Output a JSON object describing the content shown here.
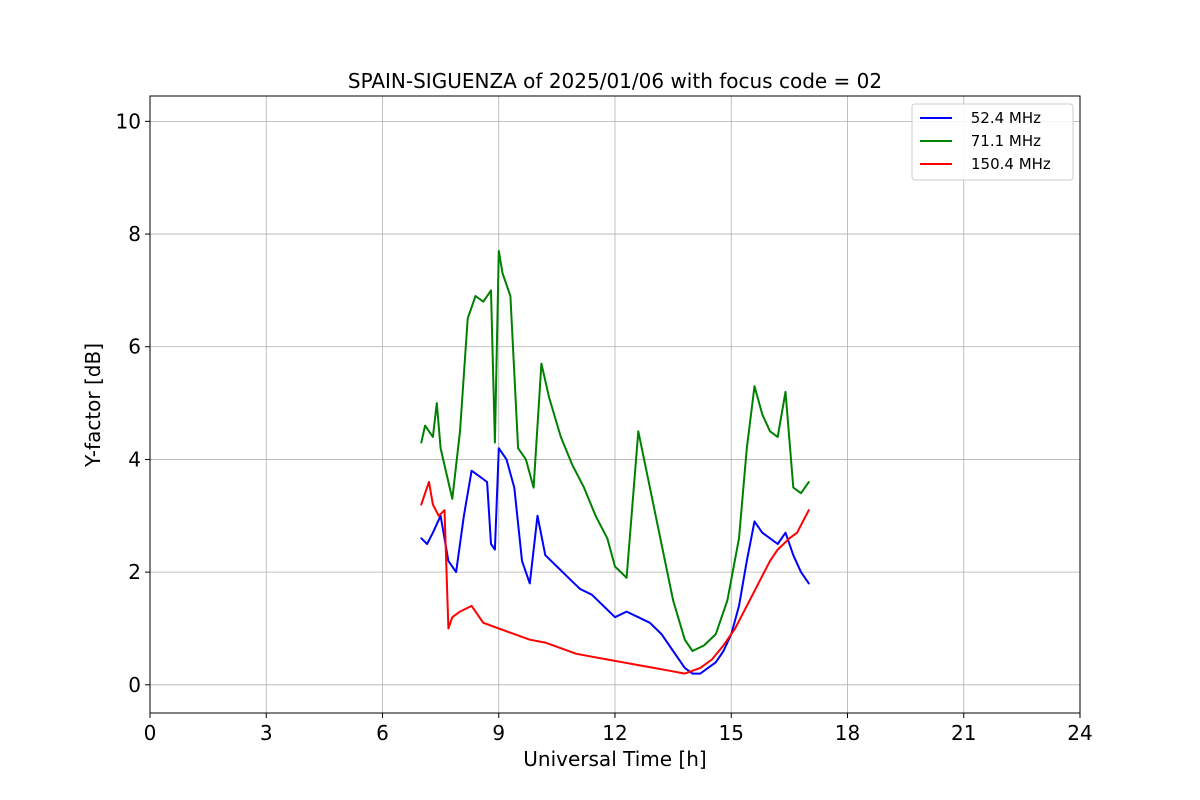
{
  "chart_data": {
    "type": "line",
    "title": "SPAIN-SIGUENZA of 2025/01/06 with focus code = 02",
    "xlabel": "Universal Time [h]",
    "ylabel": "Y-factor [dB]",
    "xlim": [
      0,
      24
    ],
    "ylim": [
      -0.5,
      10.45
    ],
    "xticks": [
      0,
      3,
      6,
      9,
      12,
      15,
      18,
      21,
      24
    ],
    "xtick_labels": [
      "0",
      "3",
      "6",
      "9",
      "12",
      "15",
      "18",
      "21",
      "24"
    ],
    "yticks": [
      0,
      2,
      4,
      6,
      8,
      10
    ],
    "ytick_labels": [
      "0",
      "2",
      "4",
      "6",
      "8",
      "10"
    ],
    "grid": true,
    "legend_position": "top-right",
    "series": [
      {
        "name": " 52.4 MHz",
        "color": "#0000ff",
        "x": [
          7.0,
          7.15,
          7.3,
          7.5,
          7.7,
          7.9,
          8.1,
          8.3,
          8.5,
          8.7,
          8.8,
          8.9,
          9.0,
          9.2,
          9.4,
          9.6,
          9.8,
          10.0,
          10.2,
          10.5,
          10.8,
          11.1,
          11.4,
          11.7,
          12.0,
          12.3,
          12.6,
          12.9,
          13.2,
          13.5,
          13.8,
          14.0,
          14.2,
          14.4,
          14.6,
          14.8,
          15.0,
          15.2,
          15.4,
          15.6,
          15.8,
          16.0,
          16.2,
          16.4,
          16.6,
          16.8,
          17.0
        ],
        "y": [
          2.6,
          2.5,
          2.7,
          3.0,
          2.2,
          2.0,
          3.0,
          3.8,
          3.7,
          3.6,
          2.5,
          2.4,
          4.2,
          4.0,
          3.5,
          2.2,
          1.8,
          3.0,
          2.3,
          2.1,
          1.9,
          1.7,
          1.6,
          1.4,
          1.2,
          1.3,
          1.2,
          1.1,
          0.9,
          0.6,
          0.3,
          0.2,
          0.2,
          0.3,
          0.4,
          0.6,
          0.9,
          1.4,
          2.2,
          2.9,
          2.7,
          2.6,
          2.5,
          2.7,
          2.3,
          2.0,
          1.8
        ]
      },
      {
        "name": " 71.1 MHz",
        "color": "#008000",
        "x": [
          7.0,
          7.1,
          7.2,
          7.3,
          7.4,
          7.5,
          7.6,
          7.8,
          8.0,
          8.2,
          8.4,
          8.6,
          8.8,
          8.9,
          9.0,
          9.1,
          9.3,
          9.5,
          9.7,
          9.9,
          10.1,
          10.3,
          10.6,
          10.9,
          11.2,
          11.5,
          11.8,
          12.0,
          12.3,
          12.6,
          12.9,
          13.2,
          13.5,
          13.8,
          14.0,
          14.3,
          14.6,
          14.9,
          15.2,
          15.4,
          15.6,
          15.8,
          16.0,
          16.2,
          16.4,
          16.6,
          16.8,
          17.0
        ],
        "y": [
          4.3,
          4.6,
          4.5,
          4.4,
          5.0,
          4.2,
          3.9,
          3.3,
          4.5,
          6.5,
          6.9,
          6.8,
          7.0,
          4.3,
          7.7,
          7.3,
          6.9,
          4.2,
          4.0,
          3.5,
          5.7,
          5.1,
          4.4,
          3.9,
          3.5,
          3.0,
          2.6,
          2.1,
          1.9,
          4.5,
          3.5,
          2.5,
          1.5,
          0.8,
          0.6,
          0.7,
          0.9,
          1.5,
          2.6,
          4.2,
          5.3,
          4.8,
          4.5,
          4.4,
          5.2,
          3.5,
          3.4,
          3.6
        ]
      },
      {
        "name": "150.4 MHz",
        "color": "#ff0000",
        "x": [
          7.0,
          7.1,
          7.2,
          7.3,
          7.45,
          7.6,
          7.7,
          7.8,
          8.0,
          8.3,
          8.6,
          9.0,
          9.4,
          9.8,
          10.2,
          10.6,
          11.0,
          11.4,
          11.8,
          12.2,
          12.6,
          13.0,
          13.4,
          13.8,
          14.2,
          14.5,
          14.8,
          15.1,
          15.4,
          15.7,
          16.0,
          16.2,
          16.35,
          16.5,
          16.7,
          16.85,
          17.0
        ],
        "y": [
          3.2,
          3.4,
          3.6,
          3.2,
          3.0,
          3.1,
          1.0,
          1.2,
          1.3,
          1.4,
          1.1,
          1.0,
          0.9,
          0.8,
          0.75,
          0.65,
          0.55,
          0.5,
          0.45,
          0.4,
          0.35,
          0.3,
          0.25,
          0.2,
          0.3,
          0.45,
          0.7,
          1.0,
          1.4,
          1.8,
          2.2,
          2.4,
          2.5,
          2.6,
          2.7,
          2.9,
          3.1
        ]
      }
    ]
  }
}
